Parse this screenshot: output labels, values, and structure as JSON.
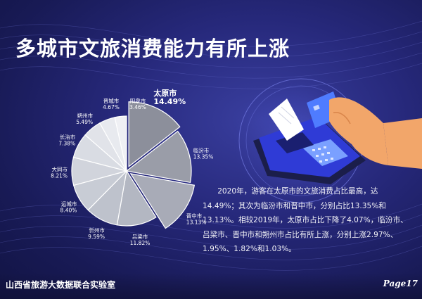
{
  "page": {
    "title": "多城市文旅消费能力有所上涨",
    "description": "2020年，游客在太原市的文旅消费占比最高，达14.49%；其次为临汾市和晋中市，分别占比13.35%和13.13%。相较2019年，太原市占比下降了4.07%，临汾市、吕梁市、晋中市和朔州市占比有所上涨，分别上涨2.97%、1.95%、1.82%和1.03%。",
    "footer_left": "山西省旅游大数据联合实验室",
    "footer_right": "Page17",
    "illustration_icon": "card-payment-terminal-icon"
  },
  "chart_data": {
    "type": "pie",
    "slices": [
      {
        "name": "太原市",
        "value": 14.49,
        "label": "14.49%",
        "exploded": true,
        "color": "#8c8f9b"
      },
      {
        "name": "临汾市",
        "value": 13.35,
        "label": "13.35%",
        "exploded": false,
        "color": "#9a9da8"
      },
      {
        "name": "晋中市",
        "value": 13.13,
        "label": "13.13%",
        "exploded": true,
        "color": "#a8abb7"
      },
      {
        "name": "吕梁市",
        "value": 11.82,
        "label": "11.82%",
        "exploded": false,
        "color": "#b3b7c2"
      },
      {
        "name": "忻州市",
        "value": 9.59,
        "label": "9.59%",
        "exploded": false,
        "color": "#bec2cc"
      },
      {
        "name": "运城市",
        "value": 8.4,
        "label": "8.40%",
        "exploded": false,
        "color": "#c8ccd5"
      },
      {
        "name": "大同市",
        "value": 8.21,
        "label": "8.21%",
        "exploded": false,
        "color": "#d1d4dc"
      },
      {
        "name": "长治市",
        "value": 7.38,
        "label": "7.38%",
        "exploded": false,
        "color": "#d9dce3"
      },
      {
        "name": "朔州市",
        "value": 5.49,
        "label": "5.49%",
        "exploded": false,
        "color": "#e1e3e9"
      },
      {
        "name": "晋城市",
        "value": 4.67,
        "label": "4.67%",
        "exploded": false,
        "color": "#e8eaef"
      },
      {
        "name": "阳泉市",
        "value": 3.46,
        "label": "3.46%",
        "exploded": false,
        "color": "#eff0f4"
      }
    ]
  }
}
